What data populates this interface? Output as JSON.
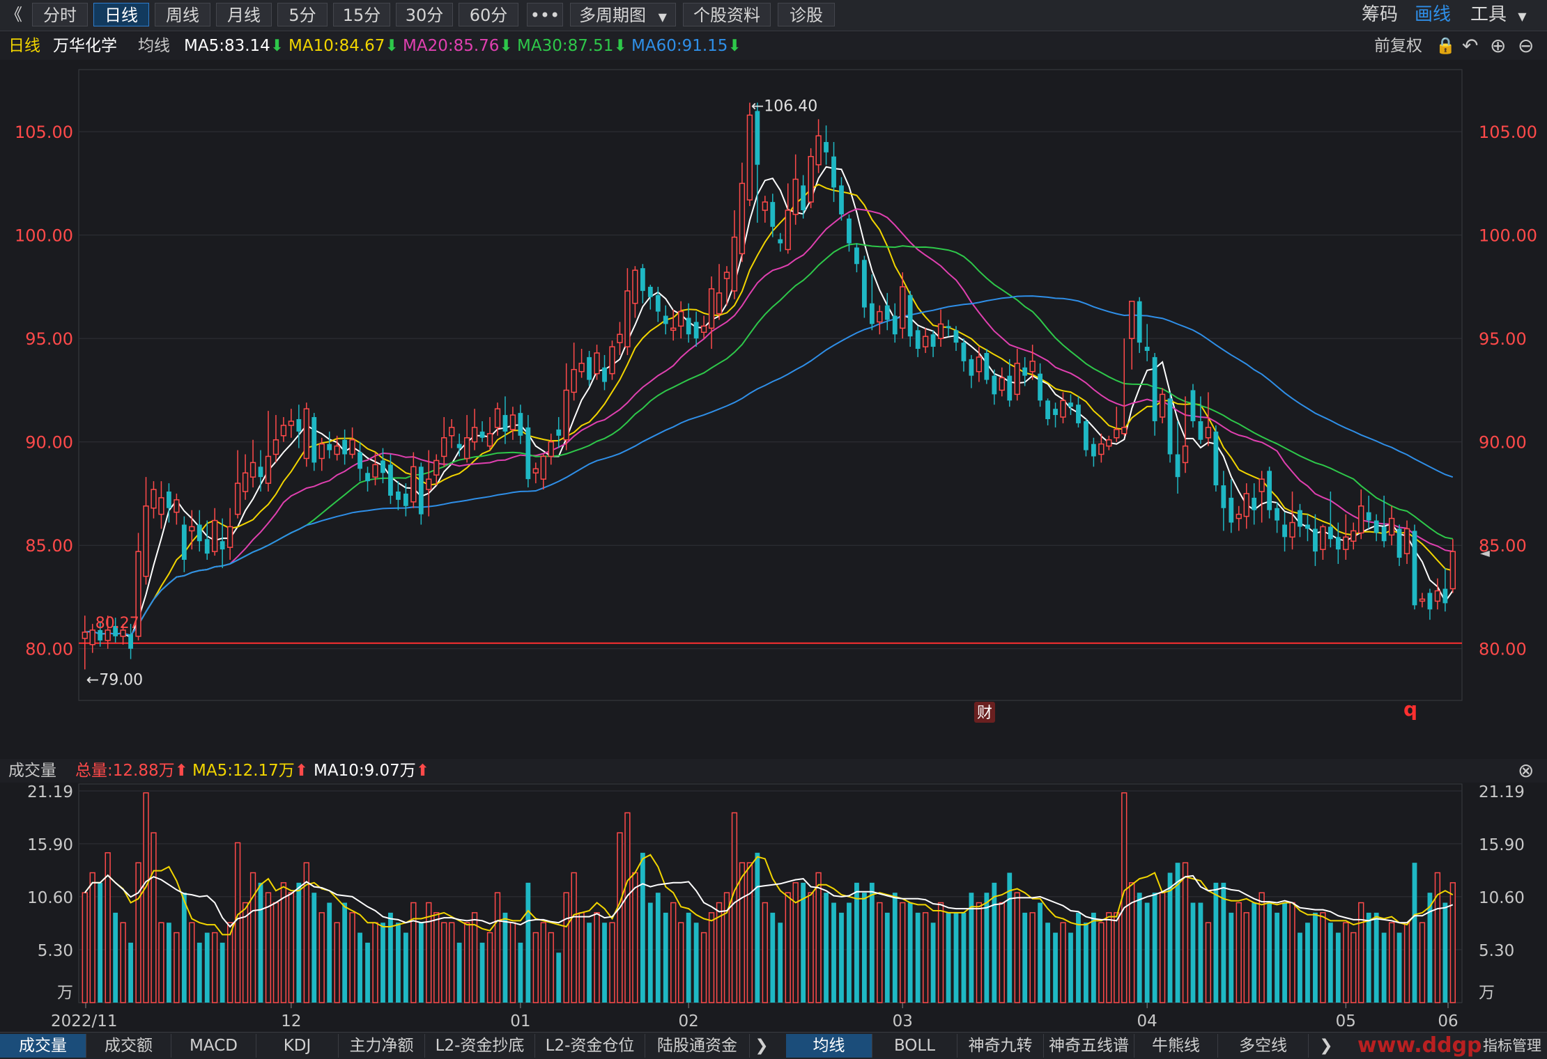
{
  "toolbar": {
    "collapse": "《",
    "periods": [
      "分时",
      "日线",
      "周线",
      "月线",
      "5分",
      "15分",
      "30分",
      "60分"
    ],
    "active_period": "日线",
    "more": "•••",
    "multi_period": "多周期图",
    "stock_info": "个股资料",
    "diagnose": "诊股",
    "right": [
      "筹码",
      "画线",
      "工具"
    ]
  },
  "info": {
    "period": "日线",
    "stock_name": "万华化学",
    "ma_label": "均线",
    "ma5": "MA5:83.14",
    "ma10": "MA10:84.67",
    "ma20": "MA20:85.76",
    "ma30": "MA30:87.51",
    "ma60": "MA60:91.15",
    "adjust": "前复权"
  },
  "volume_info": {
    "label": "成交量",
    "total": "总量:12.88万",
    "ma5": "MA5:12.17万",
    "ma10": "MA10:9.07万"
  },
  "bottom_tabs": [
    "成交量",
    "成交额",
    "MACD",
    "KDJ",
    "主力净额",
    "L2-资金抄底",
    "L2-资金仓位",
    "陆股通资金"
  ],
  "bottom_tabs2": [
    "均线",
    "BOLL",
    "神奇九转",
    "神奇五线谱",
    "牛熊线",
    "多空线"
  ],
  "bottom_right": "指标管理",
  "watermark": "www.ddgp",
  "markers": {
    "cai": "财",
    "q": "q"
  },
  "colors": {
    "up": "#ff4a4a",
    "down": "#1fb8c4",
    "ma5": "#ffffff",
    "ma10": "#f2d500",
    "ma20": "#e040b0",
    "ma30": "#2ec84a",
    "ma60": "#2f8fe8"
  },
  "chart_data": {
    "type": "candlestick",
    "price_axis": {
      "ticks": [
        80.0,
        85.0,
        90.0,
        95.0,
        100.0,
        105.0
      ],
      "ylim": [
        77.5,
        108.0
      ]
    },
    "volume_axis": {
      "ticks": [
        "21.19",
        "15.90",
        "10.60",
        "5.30",
        "万"
      ],
      "ylim": [
        0,
        21.19
      ]
    },
    "x_ticks": [
      "2022/11",
      "12",
      "01",
      "02",
      "03",
      "04",
      "05",
      "06"
    ],
    "annotations": {
      "high": "←106.40",
      "low": "←79.00",
      "mid": "80.27"
    },
    "support_line": 80.27,
    "candles": [
      [
        80.5,
        80.8,
        79.0,
        81.6,
        11
      ],
      [
        80.2,
        80.9,
        79.8,
        81.2,
        13
      ],
      [
        80.9,
        80.4,
        80.1,
        81.3,
        12
      ],
      [
        80.4,
        80.9,
        80.0,
        81.6,
        15
      ],
      [
        81.1,
        80.6,
        80.3,
        81.5,
        9
      ],
      [
        80.6,
        80.9,
        80.2,
        81.2,
        8
      ],
      [
        80.7,
        80.0,
        79.5,
        81.2,
        6
      ],
      [
        80.6,
        84.7,
        80.4,
        85.6,
        14
      ],
      [
        83.5,
        86.9,
        83.1,
        88.3,
        21
      ],
      [
        86.8,
        87.7,
        86.3,
        88.1,
        17
      ],
      [
        86.5,
        87.3,
        85.8,
        88.1,
        8
      ],
      [
        87.6,
        86.8,
        86.1,
        88.0,
        8
      ],
      [
        86.6,
        87.2,
        86.0,
        87.5,
        7
      ],
      [
        86.0,
        84.3,
        83.7,
        86.4,
        11
      ],
      [
        85.7,
        85.9,
        84.8,
        86.7,
        8
      ],
      [
        86.0,
        85.2,
        84.7,
        86.7,
        6
      ],
      [
        85.3,
        84.6,
        84.3,
        86.2,
        7
      ],
      [
        84.7,
        86.2,
        84.5,
        86.8,
        7
      ],
      [
        85.2,
        84.8,
        83.9,
        86.3,
        6
      ],
      [
        84.9,
        85.9,
        84.3,
        86.8,
        8
      ],
      [
        86.5,
        88.0,
        86.3,
        89.6,
        16
      ],
      [
        87.6,
        88.5,
        87.2,
        89.4,
        10
      ],
      [
        88.3,
        89.0,
        87.8,
        90.1,
        13
      ],
      [
        88.8,
        88.3,
        87.6,
        89.6,
        12
      ],
      [
        88.0,
        89.3,
        87.6,
        91.5,
        11
      ],
      [
        89.4,
        90.1,
        89.0,
        91.3,
        10
      ],
      [
        90.3,
        90.8,
        90.0,
        91.2,
        12
      ],
      [
        90.8,
        91.0,
        90.2,
        91.6,
        11
      ],
      [
        91.1,
        90.5,
        89.7,
        91.8,
        12
      ],
      [
        89.2,
        91.6,
        88.8,
        91.9,
        14
      ],
      [
        91.2,
        89.0,
        88.6,
        91.4,
        11
      ],
      [
        89.2,
        89.9,
        88.6,
        90.2,
        9
      ],
      [
        89.9,
        89.6,
        89.2,
        90.5,
        10
      ],
      [
        89.4,
        89.8,
        89.1,
        90.3,
        8
      ],
      [
        90.1,
        89.4,
        88.9,
        90.6,
        10
      ],
      [
        89.4,
        90.1,
        89.2,
        90.7,
        9
      ],
      [
        89.5,
        88.7,
        88.1,
        90.0,
        7
      ],
      [
        88.5,
        88.1,
        87.6,
        88.8,
        6
      ],
      [
        88.3,
        88.9,
        87.9,
        89.5,
        8
      ],
      [
        89.1,
        88.5,
        88.0,
        89.7,
        8
      ],
      [
        88.9,
        87.4,
        87.0,
        89.4,
        9
      ],
      [
        87.6,
        87.2,
        86.7,
        88.1,
        8
      ],
      [
        87.5,
        86.9,
        86.4,
        88.0,
        7
      ],
      [
        87.1,
        88.8,
        86.8,
        89.5,
        10
      ],
      [
        88.8,
        86.5,
        86.0,
        89.0,
        8
      ],
      [
        87.7,
        88.2,
        86.4,
        89.6,
        10
      ],
      [
        88.4,
        89.1,
        87.9,
        89.4,
        9
      ],
      [
        89.3,
        90.2,
        88.8,
        91.2,
        8
      ],
      [
        90.3,
        90.7,
        89.7,
        91.1,
        8
      ],
      [
        89.9,
        89.7,
        89.3,
        90.4,
        6
      ],
      [
        89.2,
        90.2,
        89.0,
        91.3,
        8
      ],
      [
        90.0,
        90.7,
        89.6,
        91.6,
        9
      ],
      [
        90.5,
        90.2,
        90.0,
        91.0,
        6
      ],
      [
        89.8,
        90.4,
        89.6,
        91.2,
        7
      ],
      [
        90.7,
        91.6,
        90.3,
        91.9,
        11
      ],
      [
        91.3,
        90.5,
        89.9,
        92.2,
        9
      ],
      [
        90.6,
        91.3,
        90.1,
        91.7,
        8
      ],
      [
        91.4,
        90.3,
        89.9,
        91.8,
        6
      ],
      [
        90.7,
        88.2,
        87.8,
        91.3,
        12
      ],
      [
        88.5,
        88.7,
        88.0,
        89.0,
        7
      ],
      [
        88.2,
        89.3,
        87.7,
        89.4,
        8
      ],
      [
        89.3,
        90.0,
        88.9,
        90.4,
        7
      ],
      [
        90.6,
        90.3,
        89.7,
        91.2,
        5
      ],
      [
        90.1,
        92.5,
        89.6,
        93.8,
        11
      ],
      [
        92.4,
        93.5,
        92.0,
        94.8,
        13
      ],
      [
        93.4,
        93.8,
        93.1,
        94.5,
        9
      ],
      [
        94.1,
        93.0,
        92.7,
        94.4,
        8
      ],
      [
        93.3,
        94.3,
        93.0,
        94.7,
        9
      ],
      [
        93.6,
        92.9,
        92.5,
        94.2,
        8
      ],
      [
        93.3,
        94.6,
        93.0,
        94.9,
        8
      ],
      [
        94.8,
        95.2,
        94.2,
        95.8,
        17
      ],
      [
        94.6,
        97.3,
        94.2,
        98.4,
        19
      ],
      [
        96.7,
        98.3,
        96.0,
        98.5,
        13
      ],
      [
        98.4,
        97.3,
        96.7,
        98.6,
        15
      ],
      [
        97.5,
        97.0,
        96.4,
        97.6,
        10
      ],
      [
        97.1,
        96.3,
        95.8,
        97.5,
        11
      ],
      [
        96.1,
        95.7,
        95.2,
        96.6,
        9
      ],
      [
        95.4,
        95.5,
        94.9,
        96.4,
        10
      ],
      [
        95.6,
        96.3,
        95.0,
        96.8,
        8
      ],
      [
        96.0,
        95.2,
        94.8,
        96.7,
        9
      ],
      [
        95.8,
        95.0,
        94.6,
        96.3,
        8
      ],
      [
        95.3,
        95.6,
        95.0,
        96.1,
        7
      ],
      [
        95.5,
        97.4,
        94.5,
        98.0,
        9
      ],
      [
        96.2,
        97.2,
        95.9,
        98.6,
        10
      ],
      [
        97.9,
        98.2,
        96.6,
        98.5,
        11
      ],
      [
        97.3,
        99.9,
        96.9,
        101.2,
        19
      ],
      [
        99.1,
        102.5,
        98.7,
        103.5,
        14
      ],
      [
        101.7,
        105.8,
        101.4,
        106.4,
        14
      ],
      [
        106.0,
        103.4,
        100.6,
        106.4,
        15
      ],
      [
        101.2,
        101.6,
        100.6,
        101.9,
        10
      ],
      [
        101.6,
        100.4,
        99.9,
        102.0,
        9
      ],
      [
        99.8,
        99.6,
        99.2,
        100.1,
        8
      ],
      [
        99.3,
        101.2,
        99.1,
        102.5,
        11
      ],
      [
        101.0,
        102.7,
        100.5,
        103.9,
        12
      ],
      [
        102.4,
        101.2,
        100.8,
        102.9,
        12
      ],
      [
        101.6,
        103.8,
        101.3,
        104.2,
        11
      ],
      [
        103.4,
        104.8,
        103.0,
        105.6,
        13
      ],
      [
        104.5,
        104.0,
        103.4,
        105.3,
        11
      ],
      [
        103.8,
        102.3,
        101.6,
        104.5,
        10
      ],
      [
        102.4,
        101.0,
        100.7,
        102.8,
        9
      ],
      [
        100.8,
        99.6,
        99.2,
        101.0,
        10
      ],
      [
        99.4,
        98.6,
        98.2,
        99.6,
        12
      ],
      [
        98.8,
        96.5,
        96.0,
        99.0,
        11
      ],
      [
        96.7,
        95.7,
        95.4,
        98.1,
        12
      ],
      [
        95.8,
        96.3,
        95.2,
        96.6,
        10
      ],
      [
        96.6,
        95.9,
        95.4,
        97.2,
        9
      ],
      [
        96.1,
        95.2,
        94.8,
        96.7,
        11
      ],
      [
        95.5,
        97.5,
        95.0,
        98.2,
        10
      ],
      [
        97.1,
        95.1,
        94.6,
        97.3,
        10
      ],
      [
        95.4,
        94.5,
        94.1,
        95.6,
        9
      ],
      [
        94.6,
        95.1,
        94.3,
        95.5,
        9
      ],
      [
        95.2,
        94.6,
        94.1,
        95.4,
        8
      ],
      [
        95.0,
        95.7,
        94.6,
        96.4,
        10
      ],
      [
        95.6,
        95.5,
        95.1,
        95.9,
        9
      ],
      [
        95.4,
        94.8,
        94.4,
        95.6,
        9
      ],
      [
        94.8,
        93.9,
        93.4,
        95.0,
        9
      ],
      [
        94.0,
        93.2,
        92.6,
        94.2,
        11
      ],
      [
        93.4,
        94.1,
        92.9,
        94.6,
        10
      ],
      [
        94.3,
        93.0,
        92.8,
        94.5,
        11
      ],
      [
        93.2,
        92.3,
        91.8,
        93.5,
        12
      ],
      [
        92.5,
        93.1,
        92.2,
        93.6,
        10
      ],
      [
        93.2,
        92.0,
        91.7,
        94.0,
        13
      ],
      [
        92.3,
        93.8,
        92.0,
        94.5,
        11
      ],
      [
        93.6,
        93.2,
        92.7,
        94.1,
        9
      ],
      [
        93.4,
        93.9,
        93.0,
        94.7,
        9
      ],
      [
        93.3,
        92.0,
        91.7,
        93.8,
        10
      ],
      [
        92.0,
        91.1,
        90.8,
        92.1,
        8
      ],
      [
        91.6,
        91.3,
        90.7,
        91.9,
        7
      ],
      [
        91.2,
        92.0,
        90.9,
        92.4,
        8
      ],
      [
        91.9,
        91.7,
        91.3,
        92.3,
        7
      ],
      [
        91.8,
        90.9,
        90.7,
        92.2,
        9
      ],
      [
        91.0,
        89.6,
        89.3,
        91.1,
        8
      ],
      [
        89.9,
        89.3,
        88.8,
        90.2,
        9
      ],
      [
        89.4,
        89.9,
        89.0,
        90.4,
        8
      ],
      [
        89.8,
        90.1,
        89.6,
        90.3,
        9
      ],
      [
        90.2,
        90.6,
        90.0,
        91.7,
        9
      ],
      [
        90.4,
        90.7,
        90.3,
        95.0,
        21
      ],
      [
        95.0,
        96.8,
        93.5,
        96.8,
        12
      ],
      [
        96.8,
        94.8,
        94.3,
        97.0,
        11
      ],
      [
        94.6,
        94.4,
        93.9,
        95.7,
        10
      ],
      [
        94.1,
        91.0,
        90.3,
        94.3,
        11
      ],
      [
        91.2,
        92.3,
        90.9,
        92.6,
        11
      ],
      [
        92.1,
        89.4,
        89.0,
        92.4,
        13
      ],
      [
        89.4,
        88.3,
        87.5,
        91.0,
        14
      ],
      [
        89.0,
        89.8,
        88.5,
        92.2,
        14
      ],
      [
        92.5,
        91.0,
        90.7,
        92.8,
        10
      ],
      [
        91.0,
        90.1,
        89.9,
        92.2,
        10
      ],
      [
        90.2,
        90.7,
        89.8,
        92.4,
        8
      ],
      [
        90.5,
        87.9,
        87.6,
        90.8,
        12
      ],
      [
        87.9,
        86.8,
        85.7,
        88.6,
        12
      ],
      [
        87.3,
        86.1,
        85.6,
        88.2,
        9
      ],
      [
        86.3,
        86.5,
        85.7,
        86.9,
        10
      ],
      [
        86.4,
        87.5,
        85.8,
        88.0,
        9
      ],
      [
        87.3,
        86.7,
        86.0,
        88.0,
        10
      ],
      [
        87.6,
        88.2,
        86.1,
        88.6,
        11
      ],
      [
        88.6,
        86.7,
        86.3,
        88.8,
        10
      ],
      [
        86.8,
        86.2,
        85.6,
        87.1,
        9
      ],
      [
        86.0,
        85.4,
        84.7,
        86.6,
        10
      ],
      [
        85.4,
        86.1,
        84.8,
        87.6,
        10
      ],
      [
        86.7,
        85.9,
        85.4,
        87.0,
        7
      ],
      [
        86.0,
        85.8,
        85.2,
        86.5,
        8
      ],
      [
        85.8,
        84.7,
        84.0,
        86.5,
        9
      ],
      [
        84.8,
        85.9,
        84.3,
        86.0,
        9
      ],
      [
        85.9,
        85.3,
        84.9,
        87.6,
        8
      ],
      [
        85.4,
        84.8,
        84.1,
        86.1,
        7
      ],
      [
        84.8,
        85.4,
        84.3,
        86.5,
        8
      ],
      [
        85.2,
        85.7,
        84.8,
        86.1,
        7
      ],
      [
        85.6,
        86.9,
        85.3,
        87.7,
        10
      ],
      [
        86.6,
        86.2,
        85.8,
        87.4,
        9
      ],
      [
        86.2,
        85.6,
        85.2,
        86.5,
        9
      ],
      [
        85.9,
        85.2,
        84.9,
        87.4,
        7
      ],
      [
        85.5,
        86.3,
        85.0,
        86.9,
        8
      ],
      [
        85.8,
        84.4,
        84.0,
        86.0,
        7
      ],
      [
        84.6,
        85.8,
        84.1,
        86.2,
        8
      ],
      [
        85.7,
        82.1,
        81.9,
        86.0,
        14
      ],
      [
        82.3,
        82.4,
        82.0,
        82.7,
        8
      ],
      [
        82.7,
        81.9,
        81.4,
        82.9,
        11
      ],
      [
        82.3,
        82.8,
        81.9,
        83.4,
        13
      ],
      [
        82.9,
        82.2,
        81.8,
        83.9,
        10
      ],
      [
        82.9,
        84.7,
        82.7,
        85.3,
        12
      ]
    ]
  }
}
